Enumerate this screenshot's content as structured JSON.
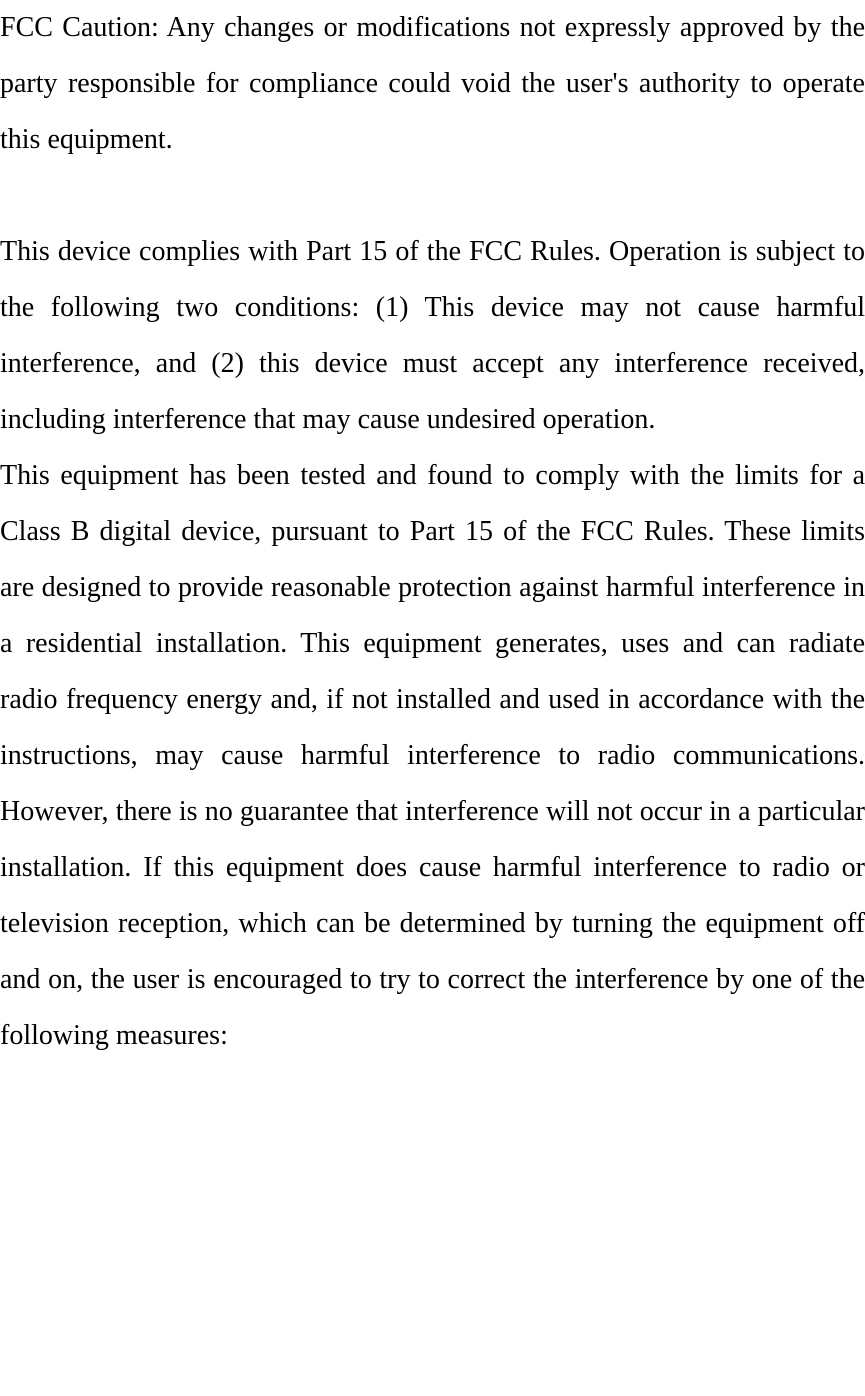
{
  "document": {
    "text_color": "#000000",
    "background_color": "#ffffff",
    "font_family": "Times New Roman",
    "font_size_pt": 21,
    "line_height": 2.0,
    "text_align": "justify",
    "paragraphs": {
      "p1": "FCC Caution: Any changes or modifications not expressly approved by the party responsible for compliance could void the user's authority to operate this equipment.",
      "p2": "This device complies with Part 15 of the FCC Rules. Operation is subject to the following two conditions: (1) This device may not cause harmful interference, and (2) this device must accept any interference received, including interference that may cause undesired operation.",
      "p3": " This equipment has been tested and found to comply with the limits for a Class B digital device, pursuant to Part 15 of the FCC Rules.  These limits are designed to provide reasonable protection against harmful interference in a residential installation.  This equipment generates, uses and can radiate radio frequency energy and, if not installed and used in accordance with the instructions, may cause harmful interference to radio communications.  However, there is no guarantee that interference will not occur in a particular installation.   If this equipment does cause harmful interference to radio or television reception, which can be determined by turning the equipment off and on, the user is encouraged to try to correct the interference by one of the following measures:"
    }
  }
}
